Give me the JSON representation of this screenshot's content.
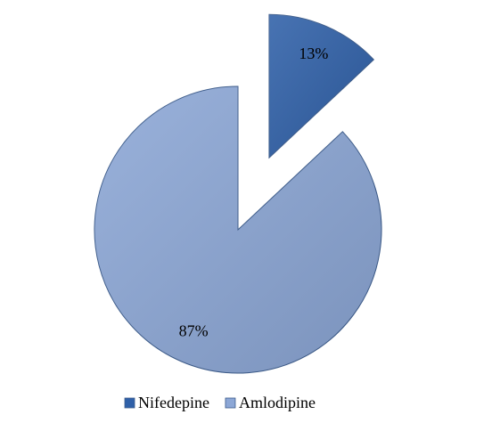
{
  "chart_data": {
    "type": "pie",
    "categories": [
      "Nifedepine",
      "Amlodipine"
    ],
    "values": [
      13,
      87
    ],
    "value_labels": [
      "13%",
      "87%"
    ],
    "colors": [
      "#2f60a8",
      "#8ca7d6"
    ],
    "legend": "bottom"
  }
}
